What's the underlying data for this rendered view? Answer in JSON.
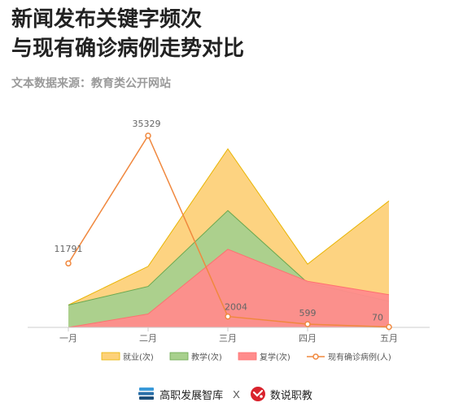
{
  "header": {
    "title_line1": "新闻发布关键字频次",
    "title_line2": "与现有确诊病例走势对比",
    "source": "文本数据来源：教育类公开网站"
  },
  "chart_data": {
    "type": "area",
    "categories": [
      "一月",
      "二月",
      "三月",
      "四月",
      "五月"
    ],
    "series": [
      {
        "name": "就业(次)",
        "type": "area",
        "values": [
          30,
          82,
          240,
          85,
          170
        ],
        "color": "#fdd17a",
        "stroke": "#e8b400"
      },
      {
        "name": "教学(次)",
        "type": "area",
        "values": [
          30,
          55,
          157,
          60,
          35
        ],
        "color": "#a8d08d",
        "stroke": "#6aa84f"
      },
      {
        "name": "复学(次)",
        "type": "area",
        "values": [
          0,
          18,
          105,
          62,
          44
        ],
        "color": "#ff8c8c",
        "stroke": "#ff7070"
      },
      {
        "name": "现有确诊病例(人)",
        "type": "line",
        "values": [
          11791,
          35329,
          2004,
          599,
          70
        ],
        "labels": [
          "11791",
          "35329",
          "2004",
          "599",
          "70"
        ],
        "color": "#f0883e"
      }
    ],
    "legend_position": "bottom",
    "grid": false
  },
  "footer": {
    "brand_left": "高职发展智库",
    "separator": "X",
    "brand_right": "数说职教",
    "left_icon": "stacked-books-icon",
    "right_icon": "red-circle-logo-icon"
  }
}
